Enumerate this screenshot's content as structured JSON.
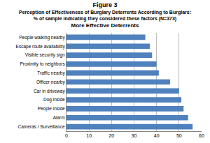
{
  "chart_data": {
    "type": "bar",
    "orientation": "horizontal",
    "title": "Figure 3",
    "subtitle": [
      "Perception of Effectiveness of Burglary Deterrents According to Burglars:",
      "% of sample indicating they considered these factors (N=373)"
    ],
    "chart_title": "More Effective Deterrents",
    "categories": [
      "People walking nearby",
      "Escape route availability",
      "Visible security sign",
      "Proximity to neighbors",
      "Traffic nearby",
      "Officer nearby",
      "Car in driveway",
      "Dog inside",
      "People inside",
      "Alarm",
      "Cameras / Surveillance"
    ],
    "values": [
      35,
      37,
      38,
      40,
      41,
      46,
      50,
      51,
      52,
      54,
      56
    ],
    "color": "#4f81bd",
    "xlim": [
      0,
      60
    ],
    "xticks": [
      0,
      10,
      20,
      30,
      40,
      50,
      60
    ],
    "grid": true
  }
}
